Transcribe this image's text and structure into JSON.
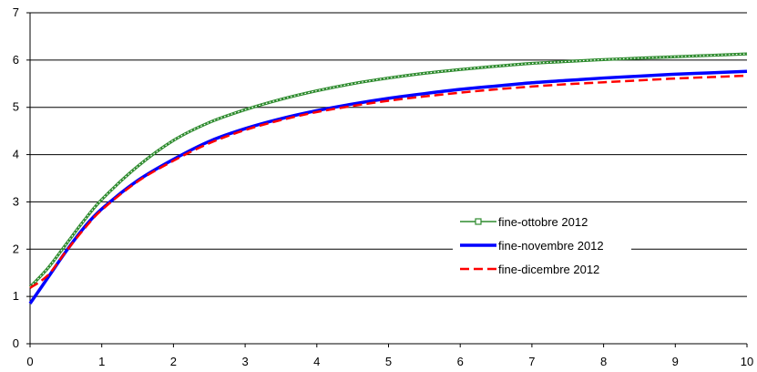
{
  "chart_data": {
    "type": "line",
    "title": "",
    "xlabel": "",
    "ylabel": "",
    "xlim": [
      0,
      10
    ],
    "ylim": [
      0,
      7
    ],
    "x_ticks": [
      0,
      1,
      2,
      3,
      4,
      5,
      6,
      7,
      8,
      9,
      10
    ],
    "y_ticks": [
      0,
      1,
      2,
      3,
      4,
      5,
      6,
      7
    ],
    "grid": "horizontal",
    "legend_position": "center-right",
    "x": [
      0,
      0.25,
      0.5,
      0.75,
      1,
      1.5,
      2,
      2.5,
      3,
      3.5,
      4,
      4.5,
      5,
      5.5,
      6,
      6.5,
      7,
      7.5,
      8,
      8.5,
      9,
      9.5,
      10
    ],
    "series": [
      {
        "name": "fine-ottobre 2012",
        "color": "#2e8b2e",
        "style": "line-square-markers",
        "values": [
          1.2,
          1.6,
          2.1,
          2.6,
          3.05,
          3.75,
          4.3,
          4.68,
          4.95,
          5.17,
          5.35,
          5.5,
          5.62,
          5.72,
          5.8,
          5.87,
          5.93,
          5.97,
          6.01,
          6.04,
          6.07,
          6.1,
          6.13
        ]
      },
      {
        "name": "fine-novembre 2012",
        "color": "#0000ff",
        "style": "thick-solid",
        "values": [
          0.85,
          1.4,
          1.95,
          2.45,
          2.85,
          3.45,
          3.9,
          4.28,
          4.55,
          4.76,
          4.93,
          5.07,
          5.19,
          5.29,
          5.38,
          5.45,
          5.52,
          5.57,
          5.62,
          5.66,
          5.7,
          5.73,
          5.76
        ]
      },
      {
        "name": "fine-dicembre 2012",
        "color": "#ff0000",
        "style": "dashed",
        "values": [
          1.18,
          1.45,
          1.95,
          2.42,
          2.83,
          3.43,
          3.87,
          4.24,
          4.52,
          4.73,
          4.9,
          5.03,
          5.14,
          5.23,
          5.31,
          5.38,
          5.44,
          5.49,
          5.53,
          5.57,
          5.61,
          5.64,
          5.67
        ]
      }
    ]
  }
}
